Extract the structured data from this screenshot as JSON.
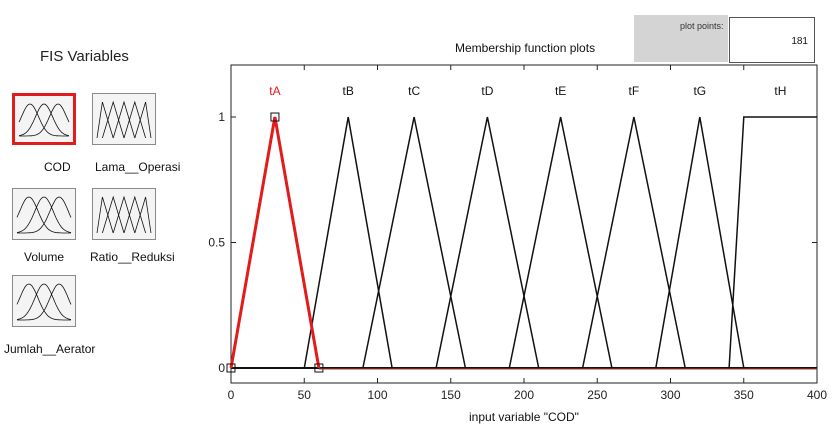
{
  "fis": {
    "title": "FIS Variables",
    "variables": [
      {
        "label": "COD",
        "selected": true,
        "icon": "gaussian-mf-icon"
      },
      {
        "label": "Lama__Operasi",
        "selected": false,
        "icon": "triangular-mf-icon"
      },
      {
        "label": "Volume",
        "selected": false,
        "icon": "gaussian-mf-icon"
      },
      {
        "label": "Ratio__Reduksi",
        "selected": false,
        "icon": "triangular-mf-icon"
      },
      {
        "label": "Jumlah__Aerator",
        "selected": false,
        "icon": "gaussian-mf-icon"
      }
    ]
  },
  "plot_points": {
    "label": "plot points:",
    "value": "181"
  },
  "chart_data": {
    "type": "line",
    "title": "Membership function plots",
    "xlabel": "input variable \"COD\"",
    "xlim": [
      0,
      400
    ],
    "ylim": [
      0,
      1
    ],
    "xticks": [
      "0",
      "50",
      "100",
      "150",
      "200",
      "250",
      "300",
      "350",
      "400"
    ],
    "yticks": [
      "0",
      "0.5",
      "1"
    ],
    "selected_color": "#e21b1b",
    "series": [
      {
        "name": "tA",
        "mf": "trimf",
        "params": [
          0,
          30,
          60
        ],
        "selected": true
      },
      {
        "name": "tB",
        "mf": "trimf",
        "params": [
          50,
          80,
          110
        ]
      },
      {
        "name": "tC",
        "mf": "trimf",
        "params": [
          90,
          125,
          160
        ]
      },
      {
        "name": "tD",
        "mf": "trimf",
        "params": [
          140,
          175,
          210
        ]
      },
      {
        "name": "tE",
        "mf": "trimf",
        "params": [
          190,
          225,
          260
        ]
      },
      {
        "name": "tF",
        "mf": "trimf",
        "params": [
          240,
          275,
          310
        ]
      },
      {
        "name": "tG",
        "mf": "trimf",
        "params": [
          290,
          320,
          350
        ]
      },
      {
        "name": "tH",
        "mf": "trapmf",
        "params": [
          340,
          350,
          400,
          400
        ]
      }
    ]
  }
}
